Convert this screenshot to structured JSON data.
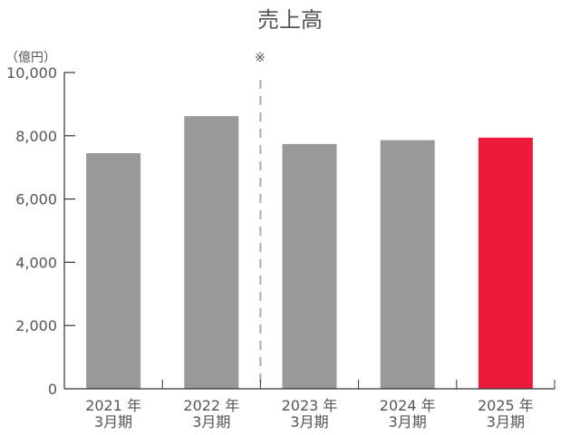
{
  "chart_data": {
    "type": "bar",
    "title": "売上高",
    "ylabel": "（億円）",
    "ylim": [
      0,
      10000
    ],
    "yticks": [
      "0",
      "2,000",
      "4,000",
      "6,000",
      "8,000",
      "10,000"
    ],
    "categories": [
      [
        "2021 年",
        "3月期"
      ],
      [
        "2022 年",
        "3月期"
      ],
      [
        "2023 年",
        "3月期"
      ],
      [
        "2024 年",
        "3月期"
      ],
      [
        "2025 年",
        "3月期"
      ]
    ],
    "values": [
      7450,
      8620,
      7740,
      7860,
      7940
    ],
    "bar_colors": [
      "#999999",
      "#999999",
      "#999999",
      "#999999",
      "#ee1a3b"
    ],
    "divider_note": "※",
    "divider_between": [
      "2022 年 3月期",
      "2023 年 3月期"
    ],
    "grid": false
  }
}
